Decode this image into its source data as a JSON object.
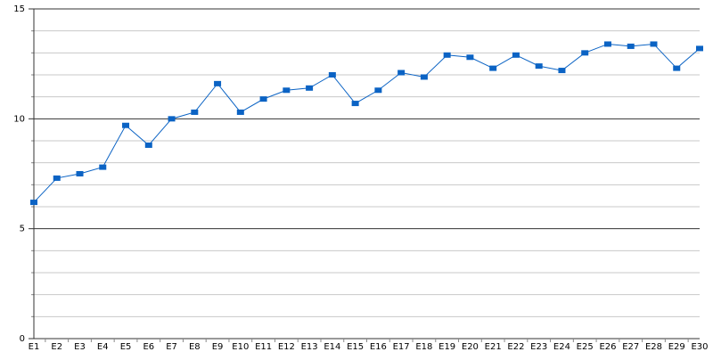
{
  "chart_data": {
    "type": "line",
    "categories": [
      "E1",
      "E2",
      "E3",
      "E4",
      "E5",
      "E6",
      "E7",
      "E8",
      "E9",
      "E10",
      "E11",
      "E12",
      "E13",
      "E14",
      "E15",
      "E16",
      "E17",
      "E18",
      "E19",
      "E20",
      "E21",
      "E22",
      "E23",
      "E24",
      "E25",
      "E26",
      "E27",
      "E28",
      "E29",
      "E30"
    ],
    "values": [
      6.2,
      7.3,
      7.5,
      7.8,
      9.7,
      8.8,
      10.0,
      10.3,
      11.6,
      10.3,
      10.9,
      11.3,
      11.4,
      12.0,
      10.7,
      11.3,
      12.1,
      11.9,
      12.9,
      12.8,
      12.3,
      12.9,
      12.4,
      12.2,
      13.0,
      13.4,
      13.3,
      13.4,
      12.3,
      13.2
    ],
    "color": "#0b63c4",
    "ylim": [
      0,
      15
    ],
    "yticks": [
      0,
      5,
      10,
      15
    ],
    "yminorticks": [
      1,
      2,
      3,
      4,
      6,
      7,
      8,
      9,
      11,
      12,
      13,
      14
    ],
    "grid": true
  }
}
